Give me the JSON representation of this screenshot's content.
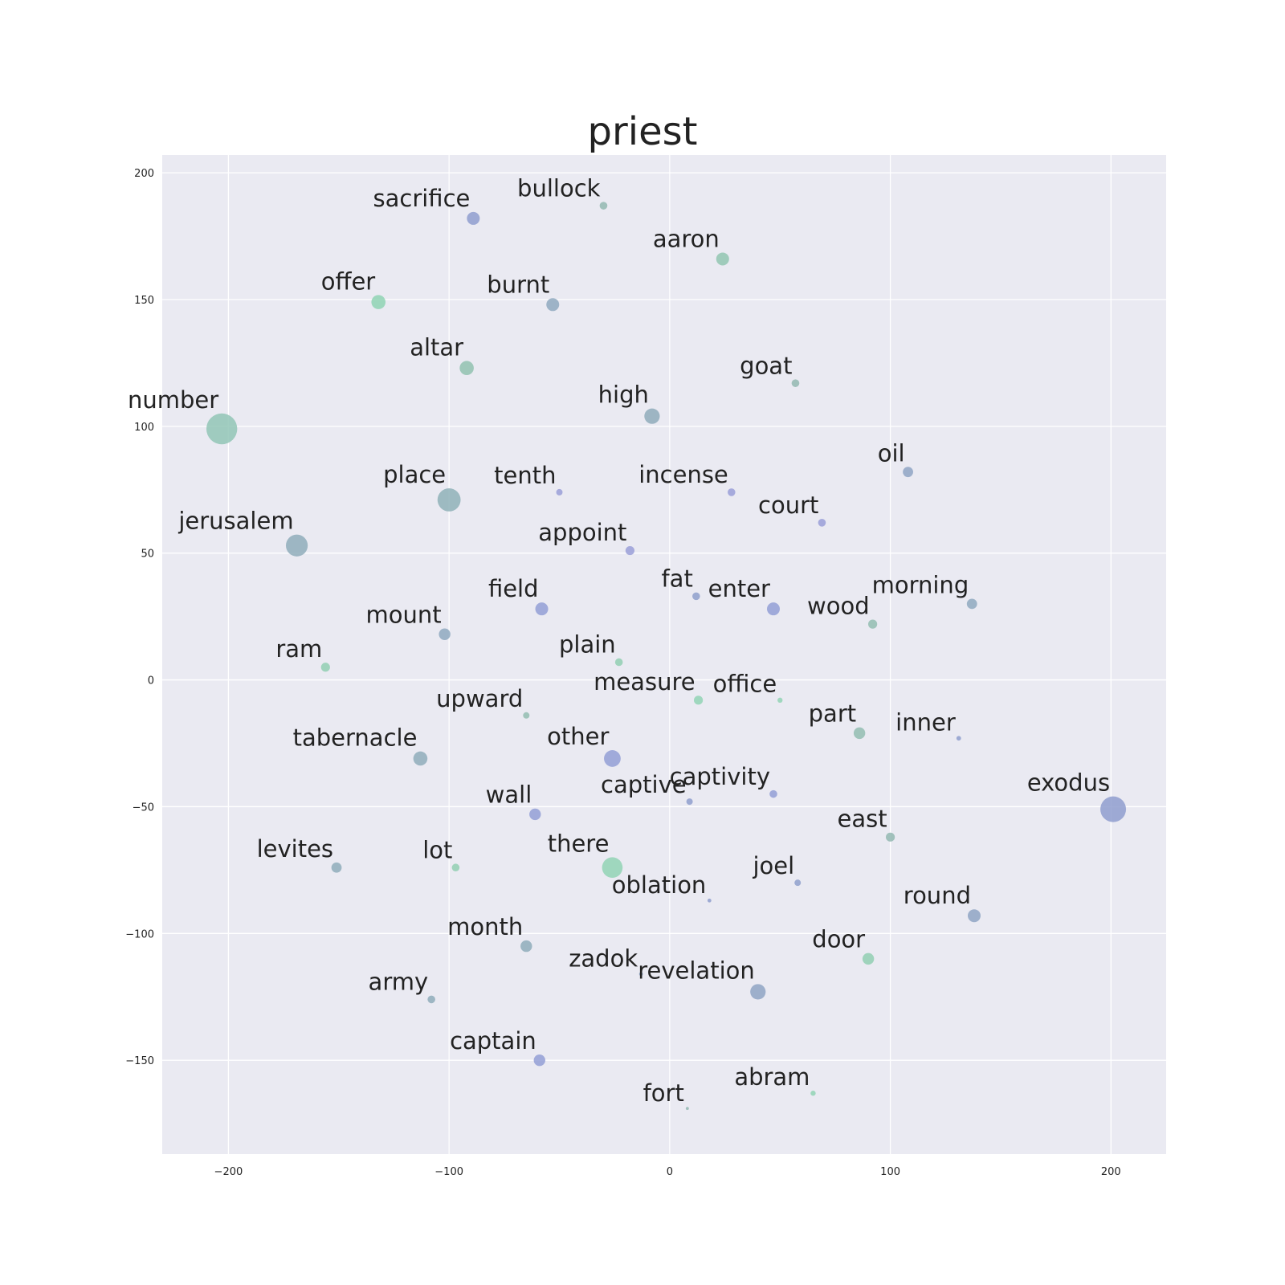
{
  "chart_data": {
    "type": "scatter",
    "title": "priest",
    "xlabel": "",
    "ylabel": "",
    "xlim": [
      -230,
      225
    ],
    "ylim": [
      -187,
      207
    ],
    "xticks": [
      -200,
      -100,
      0,
      100,
      200
    ],
    "yticks": [
      -150,
      -100,
      -50,
      0,
      50,
      100,
      150,
      200
    ],
    "grid": true,
    "background": "#eaeaf2",
    "points": [
      {
        "label": "sacrifice",
        "x": -89,
        "y": 182,
        "size": 5,
        "color": "#8f9ecf"
      },
      {
        "label": "bullock",
        "x": -30,
        "y": 187,
        "size": 3,
        "color": "#93b9b2"
      },
      {
        "label": "aaron",
        "x": 24,
        "y": 166,
        "size": 5,
        "color": "#92c6b2"
      },
      {
        "label": "offer",
        "x": -132,
        "y": 149,
        "size": 5.5,
        "color": "#8fd4b4"
      },
      {
        "label": "burnt",
        "x": -53,
        "y": 148,
        "size": 5,
        "color": "#8fa9c0"
      },
      {
        "label": "altar",
        "x": -92,
        "y": 123,
        "size": 5.5,
        "color": "#92c2b0"
      },
      {
        "label": "goat",
        "x": 57,
        "y": 117,
        "size": 3,
        "color": "#93b9b2"
      },
      {
        "label": "high",
        "x": -8,
        "y": 104,
        "size": 6,
        "color": "#8fabbb"
      },
      {
        "label": "number",
        "x": -203,
        "y": 99,
        "size": 12,
        "color": "#92c6b6"
      },
      {
        "label": "oil",
        "x": 108,
        "y": 82,
        "size": 4,
        "color": "#8fa5c4"
      },
      {
        "label": "tenth",
        "x": -50,
        "y": 74,
        "size": 2.5,
        "color": "#9a9fd8"
      },
      {
        "label": "incense",
        "x": 28,
        "y": 74,
        "size": 3,
        "color": "#9a9fd8"
      },
      {
        "label": "place",
        "x": -100,
        "y": 71,
        "size": 9,
        "color": "#8fb2b8"
      },
      {
        "label": "court",
        "x": 69,
        "y": 62,
        "size": 3,
        "color": "#9a9fd8"
      },
      {
        "label": "jerusalem",
        "x": -169,
        "y": 53,
        "size": 8.5,
        "color": "#8fadbb"
      },
      {
        "label": "appoint",
        "x": -18,
        "y": 51,
        "size": 3.5,
        "color": "#9a9fd8"
      },
      {
        "label": "fat",
        "x": 12,
        "y": 33,
        "size": 3,
        "color": "#8fa0cc"
      },
      {
        "label": "enter",
        "x": 47,
        "y": 28,
        "size": 5,
        "color": "#939fd6"
      },
      {
        "label": "field",
        "x": -58,
        "y": 28,
        "size": 5,
        "color": "#939fd6"
      },
      {
        "label": "morning",
        "x": 137,
        "y": 30,
        "size": 4,
        "color": "#8fa9c0"
      },
      {
        "label": "wood",
        "x": 92,
        "y": 22,
        "size": 3.5,
        "color": "#93bdb1"
      },
      {
        "label": "mount",
        "x": -102,
        "y": 18,
        "size": 4.5,
        "color": "#8fa9c0"
      },
      {
        "label": "plain",
        "x": -23,
        "y": 7,
        "size": 3,
        "color": "#92cfb3"
      },
      {
        "label": "ram",
        "x": -156,
        "y": 5,
        "size": 3.5,
        "color": "#92cfb3"
      },
      {
        "label": "measure",
        "x": 13,
        "y": -8,
        "size": 3.5,
        "color": "#92d4b5"
      },
      {
        "label": "office",
        "x": 50,
        "y": -8,
        "size": 2,
        "color": "#92d4b5"
      },
      {
        "label": "upward",
        "x": -65,
        "y": -14,
        "size": 2.5,
        "color": "#93bdb1"
      },
      {
        "label": "part",
        "x": 86,
        "y": -21,
        "size": 4.5,
        "color": "#93bdb1"
      },
      {
        "label": "inner",
        "x": 131,
        "y": -23,
        "size": 1.8,
        "color": "#8f9fce"
      },
      {
        "label": "tabernacle",
        "x": -113,
        "y": -31,
        "size": 5.5,
        "color": "#8fadbb"
      },
      {
        "label": "other",
        "x": -26,
        "y": -31,
        "size": 6.5,
        "color": "#939fd6"
      },
      {
        "label": "captive",
        "x": 9,
        "y": -48,
        "size": 2.5,
        "color": "#8f9fce"
      },
      {
        "label": "captivity",
        "x": 47,
        "y": -45,
        "size": 3,
        "color": "#939fd6"
      },
      {
        "label": "exodus",
        "x": 201,
        "y": -51,
        "size": 10,
        "color": "#8f9ecf"
      },
      {
        "label": "wall",
        "x": -61,
        "y": -53,
        "size": 4.5,
        "color": "#939fd6"
      },
      {
        "label": "east",
        "x": 100,
        "y": -62,
        "size": 3.5,
        "color": "#93b9b2"
      },
      {
        "label": "levites",
        "x": -151,
        "y": -74,
        "size": 4,
        "color": "#8fadbb"
      },
      {
        "label": "lot",
        "x": -97,
        "y": -74,
        "size": 3,
        "color": "#92cfb3"
      },
      {
        "label": "there",
        "x": -26,
        "y": -74,
        "size": 8,
        "color": "#92d4b5"
      },
      {
        "label": "joel",
        "x": 58,
        "y": -80,
        "size": 2.5,
        "color": "#8fa0cc"
      },
      {
        "label": "oblation",
        "x": 18,
        "y": -87,
        "size": 1.5,
        "color": "#8f9fce"
      },
      {
        "label": "round",
        "x": 138,
        "y": -93,
        "size": 5,
        "color": "#8fa5c4"
      },
      {
        "label": "month",
        "x": -65,
        "y": -105,
        "size": 4.5,
        "color": "#8fadbb"
      },
      {
        "label": "door",
        "x": 90,
        "y": -110,
        "size": 4.5,
        "color": "#92cfb3"
      },
      {
        "label": "zadok",
        "x": -13,
        "y": -116,
        "size": 1.5,
        "color": "#8fa5c4"
      },
      {
        "label": "revelation",
        "x": 40,
        "y": -123,
        "size": 6,
        "color": "#8fa5c4"
      },
      {
        "label": "army",
        "x": -108,
        "y": -126,
        "size": 3,
        "color": "#8fadbb"
      },
      {
        "label": "captain",
        "x": -59,
        "y": -150,
        "size": 4.5,
        "color": "#939fd6"
      },
      {
        "label": "abram",
        "x": 65,
        "y": -163,
        "size": 2,
        "color": "#92d4b5"
      },
      {
        "label": "fort",
        "x": 8,
        "y": -169,
        "size": 1.2,
        "color": "#93b9b2"
      }
    ]
  }
}
